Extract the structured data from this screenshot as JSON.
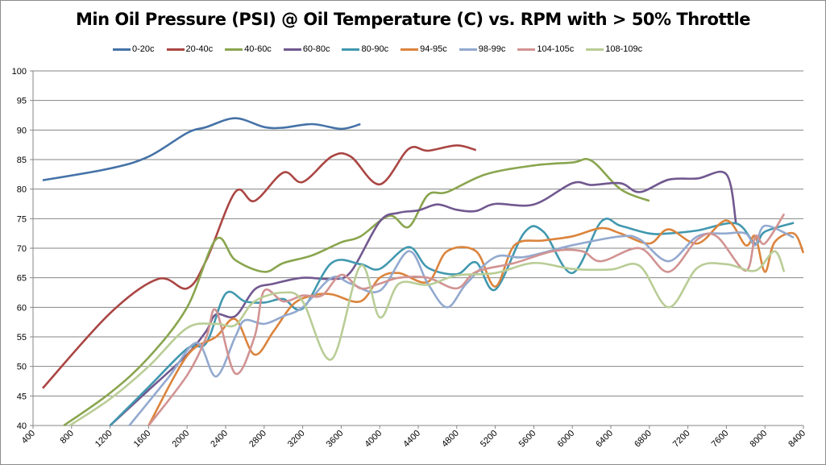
{
  "chart_data": {
    "type": "line",
    "title": "Min Oil Pressure (PSI) @ Oil Temperature (C) vs. RPM with > 50% Throttle",
    "xlabel": "",
    "ylabel": "",
    "xlim": [
      400,
      8400
    ],
    "ylim": [
      40,
      100
    ],
    "x_ticks": [
      "400",
      "800",
      "1200",
      "1600",
      "2000",
      "2400",
      "2800",
      "3200",
      "3600",
      "4000",
      "4400",
      "4800",
      "5200",
      "5600",
      "6000",
      "6400",
      "6800",
      "7200",
      "7600",
      "8000",
      "8400"
    ],
    "y_ticks": [
      "40",
      "45",
      "50",
      "55",
      "60",
      "65",
      "70",
      "75",
      "80",
      "85",
      "90",
      "95",
      "100"
    ],
    "grid": "horizontal",
    "legend": "top",
    "smoothed": true,
    "series": [
      {
        "name": "0-20c",
        "color": "#4572A7",
        "points": [
          [
            500,
            81.5
          ],
          [
            1200,
            83.5
          ],
          [
            1600,
            85.5
          ],
          [
            2000,
            89.5
          ],
          [
            2200,
            90.5
          ],
          [
            2500,
            92
          ],
          [
            2800,
            90.5
          ],
          [
            3000,
            90.4
          ],
          [
            3300,
            91
          ],
          [
            3600,
            90.2
          ],
          [
            3800,
            91
          ]
        ]
      },
      {
        "name": "20-40c",
        "color": "#AA4643",
        "points": [
          [
            500,
            46.3
          ],
          [
            1200,
            59
          ],
          [
            1700,
            64.8
          ],
          [
            2000,
            63.2
          ],
          [
            2200,
            68
          ],
          [
            2500,
            79.5
          ],
          [
            2700,
            78
          ],
          [
            3000,
            82.8
          ],
          [
            3200,
            81.2
          ],
          [
            3500,
            85.5
          ],
          [
            3700,
            85.5
          ],
          [
            4000,
            80.8
          ],
          [
            4300,
            86.8
          ],
          [
            4500,
            86.5
          ],
          [
            4800,
            87.4
          ],
          [
            5000,
            86.6
          ]
        ]
      },
      {
        "name": "40-60c",
        "color": "#89A54E",
        "points": [
          [
            720,
            40
          ],
          [
            1200,
            45.5
          ],
          [
            1600,
            51.5
          ],
          [
            2000,
            60
          ],
          [
            2300,
            71.5
          ],
          [
            2500,
            68
          ],
          [
            2800,
            66
          ],
          [
            3000,
            67.5
          ],
          [
            3300,
            68.8
          ],
          [
            3600,
            71
          ],
          [
            3800,
            72
          ],
          [
            4100,
            75.5
          ],
          [
            4300,
            73.6
          ],
          [
            4500,
            79
          ],
          [
            4700,
            79.5
          ],
          [
            5100,
            82.5
          ],
          [
            5600,
            84
          ],
          [
            6000,
            84.5
          ],
          [
            6200,
            84.8
          ],
          [
            6500,
            80
          ],
          [
            6800,
            78
          ]
        ]
      },
      {
        "name": "60-80c",
        "color": "#71588F",
        "points": [
          [
            1200,
            40
          ],
          [
            1600,
            46
          ],
          [
            2000,
            52
          ],
          [
            2200,
            56
          ],
          [
            2300,
            58.8
          ],
          [
            2500,
            58.5
          ],
          [
            2700,
            63
          ],
          [
            2900,
            64
          ],
          [
            3200,
            65
          ],
          [
            3500,
            64.8
          ],
          [
            3700,
            66
          ],
          [
            4000,
            74.5
          ],
          [
            4200,
            76
          ],
          [
            4400,
            76.4
          ],
          [
            4600,
            77.4
          ],
          [
            4800,
            76.5
          ],
          [
            5000,
            76.3
          ],
          [
            5200,
            77.5
          ],
          [
            5600,
            77.4
          ],
          [
            6000,
            81
          ],
          [
            6200,
            80.7
          ],
          [
            6500,
            81
          ],
          [
            6700,
            79.5
          ],
          [
            7000,
            81.6
          ],
          [
            7300,
            81.8
          ],
          [
            7600,
            82.5
          ],
          [
            7700,
            74.2
          ]
        ]
      },
      {
        "name": "80-90c",
        "color": "#4198AF",
        "points": [
          [
            1200,
            40
          ],
          [
            1600,
            46.5
          ],
          [
            2000,
            53
          ],
          [
            2200,
            54
          ],
          [
            2400,
            62.3
          ],
          [
            2600,
            61
          ],
          [
            2800,
            60.8
          ],
          [
            3000,
            61.4
          ],
          [
            3200,
            59.8
          ],
          [
            3500,
            67.5
          ],
          [
            3800,
            67.3
          ],
          [
            4000,
            66.5
          ],
          [
            4300,
            70.2
          ],
          [
            4500,
            66.7
          ],
          [
            4800,
            65.6
          ],
          [
            5000,
            67.6
          ],
          [
            5200,
            63
          ],
          [
            5500,
            72.6
          ],
          [
            5700,
            72.8
          ],
          [
            6000,
            65.8
          ],
          [
            6300,
            74.5
          ],
          [
            6500,
            73.8
          ],
          [
            6800,
            72.5
          ],
          [
            7000,
            72.5
          ],
          [
            7300,
            73
          ],
          [
            7700,
            74.2
          ],
          [
            7900,
            70.8
          ],
          [
            8000,
            72.8
          ],
          [
            8300,
            74.3
          ]
        ]
      },
      {
        "name": "94-95c",
        "color": "#DB843D",
        "points": [
          [
            1600,
            40
          ],
          [
            2000,
            51.8
          ],
          [
            2300,
            55
          ],
          [
            2500,
            58
          ],
          [
            2700,
            52
          ],
          [
            2900,
            56
          ],
          [
            3100,
            60.5
          ],
          [
            3300,
            62
          ],
          [
            3500,
            62.2
          ],
          [
            3800,
            61
          ],
          [
            4000,
            65
          ],
          [
            4200,
            65.8
          ],
          [
            4500,
            64.3
          ],
          [
            4700,
            69.5
          ],
          [
            5000,
            69.5
          ],
          [
            5200,
            63.5
          ],
          [
            5400,
            70.5
          ],
          [
            5700,
            71.3
          ],
          [
            6000,
            72
          ],
          [
            6300,
            73.4
          ],
          [
            6500,
            72.5
          ],
          [
            6800,
            70.8
          ],
          [
            7000,
            73.2
          ],
          [
            7300,
            70.8
          ],
          [
            7600,
            74.7
          ],
          [
            7800,
            70.5
          ],
          [
            7900,
            72
          ],
          [
            8000,
            66
          ],
          [
            8100,
            71
          ],
          [
            8300,
            72.5
          ],
          [
            8400,
            69.2
          ]
        ]
      },
      {
        "name": "98-99c",
        "color": "#93A9CF",
        "points": [
          [
            1400,
            40
          ],
          [
            1800,
            48
          ],
          [
            2100,
            54
          ],
          [
            2300,
            48.3
          ],
          [
            2500,
            55
          ],
          [
            2600,
            57.8
          ],
          [
            2800,
            57.2
          ],
          [
            3000,
            58.5
          ],
          [
            3200,
            60
          ],
          [
            3500,
            65
          ],
          [
            3700,
            64
          ],
          [
            4000,
            62.8
          ],
          [
            4300,
            69.5
          ],
          [
            4500,
            64
          ],
          [
            4700,
            60
          ],
          [
            4900,
            64
          ],
          [
            5200,
            68.5
          ],
          [
            5500,
            68.5
          ],
          [
            6000,
            70.5
          ],
          [
            6500,
            72
          ],
          [
            6700,
            71.5
          ],
          [
            7000,
            67.8
          ],
          [
            7300,
            72
          ],
          [
            7600,
            72.5
          ],
          [
            7800,
            72.5
          ],
          [
            7900,
            70.5
          ],
          [
            8000,
            73.8
          ],
          [
            8300,
            71.8
          ]
        ]
      },
      {
        "name": "104-105c",
        "color": "#D19392",
        "points": [
          [
            1600,
            40
          ],
          [
            2000,
            48.5
          ],
          [
            2200,
            55
          ],
          [
            2300,
            59.5
          ],
          [
            2500,
            48.8
          ],
          [
            2700,
            55
          ],
          [
            2800,
            62.8
          ],
          [
            3000,
            61
          ],
          [
            3200,
            62
          ],
          [
            3400,
            62
          ],
          [
            3600,
            65.5
          ],
          [
            3800,
            63.2
          ],
          [
            4000,
            64
          ],
          [
            4200,
            65
          ],
          [
            4500,
            65
          ],
          [
            4800,
            63.2
          ],
          [
            5000,
            66
          ],
          [
            5400,
            67.5
          ],
          [
            5800,
            69.5
          ],
          [
            6100,
            69.5
          ],
          [
            6300,
            67.8
          ],
          [
            6700,
            70
          ],
          [
            7000,
            66
          ],
          [
            7300,
            71.5
          ],
          [
            7500,
            72
          ],
          [
            7800,
            66.2
          ],
          [
            7900,
            72
          ],
          [
            8000,
            70.8
          ],
          [
            8200,
            75.8
          ]
        ]
      },
      {
        "name": "108-109c",
        "color": "#B9CD96",
        "points": [
          [
            780,
            40
          ],
          [
            1200,
            44.5
          ],
          [
            1600,
            50
          ],
          [
            2000,
            56.5
          ],
          [
            2300,
            57.2
          ],
          [
            2500,
            57
          ],
          [
            2700,
            61
          ],
          [
            3000,
            62.5
          ],
          [
            3200,
            61
          ],
          [
            3500,
            51.2
          ],
          [
            3800,
            67
          ],
          [
            4000,
            58.3
          ],
          [
            4200,
            64
          ],
          [
            4500,
            63.8
          ],
          [
            4800,
            65.4
          ],
          [
            5200,
            65.8
          ],
          [
            5600,
            67.5
          ],
          [
            6000,
            66.5
          ],
          [
            6400,
            66.4
          ],
          [
            6700,
            67
          ],
          [
            7000,
            60
          ],
          [
            7300,
            66.7
          ],
          [
            7600,
            67.3
          ],
          [
            7900,
            66.2
          ],
          [
            8100,
            69.5
          ],
          [
            8200,
            66
          ]
        ]
      }
    ]
  }
}
